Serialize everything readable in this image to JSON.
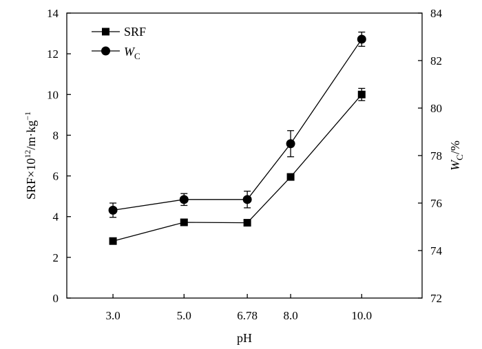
{
  "chart_data": {
    "type": "line",
    "x_labels": [
      "3.0",
      "5.0",
      "6.78",
      "8.0",
      "10.0"
    ],
    "x": [
      3.0,
      5.0,
      6.78,
      8.0,
      10.0
    ],
    "xlim": [
      1.7,
      11.7
    ],
    "xlabel": "pH",
    "y_left": {
      "label_main": "SRF×10",
      "label_sup": "12",
      "label_unit": "/m·kg",
      "label_unit_sup": "−1",
      "ylim": [
        0,
        14
      ],
      "ticks": [
        0,
        2,
        4,
        6,
        8,
        10,
        12,
        14
      ]
    },
    "y_right": {
      "label_main": "W",
      "label_sub": "C",
      "label_unit": "/%",
      "ylim": [
        72,
        84
      ],
      "ticks": [
        72,
        74,
        76,
        78,
        80,
        82,
        84
      ]
    },
    "series": [
      {
        "name": "SRF",
        "axis": "left",
        "marker": "square",
        "values": [
          2.8,
          3.72,
          3.7,
          5.95,
          10.0
        ],
        "errors": [
          0.1,
          0.1,
          0.1,
          0.1,
          0.3
        ]
      },
      {
        "name_main": "W",
        "name_sub": "C",
        "axis": "right",
        "marker": "circle",
        "values": [
          75.7,
          76.15,
          76.15,
          78.5,
          82.9
        ],
        "errors": [
          0.3,
          0.25,
          0.35,
          0.55,
          0.3
        ]
      }
    ],
    "grid": false,
    "legend_position": "top-left"
  }
}
